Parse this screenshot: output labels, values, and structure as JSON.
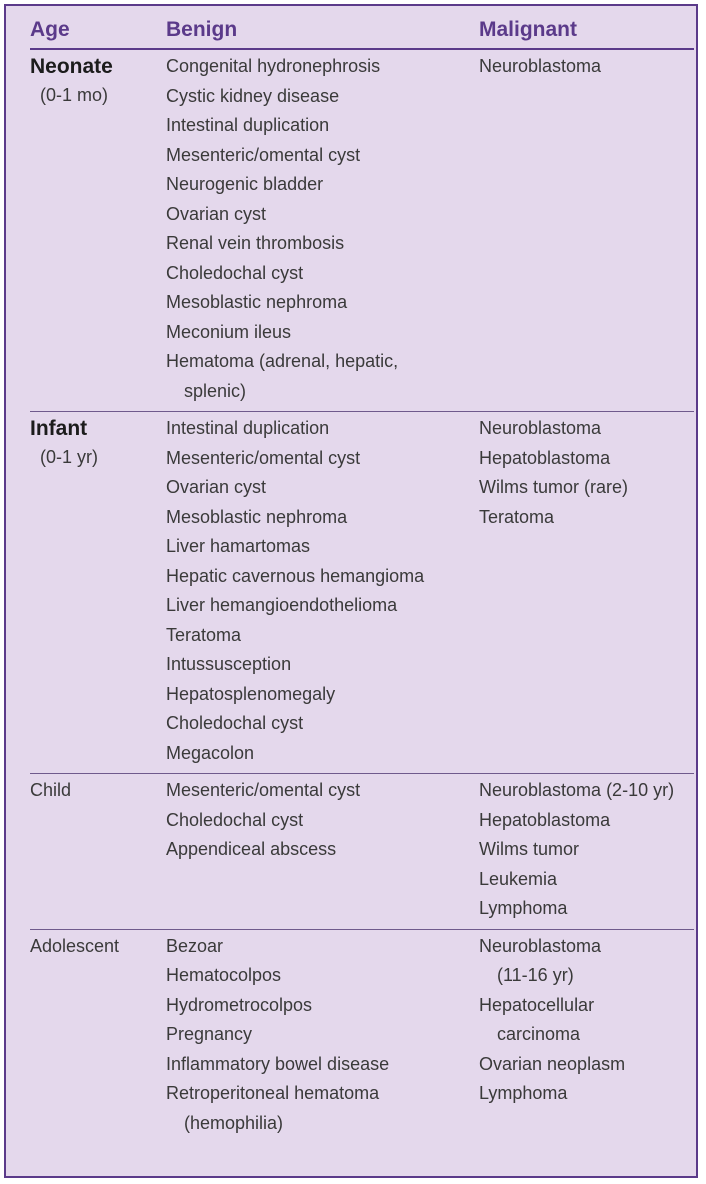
{
  "headers": {
    "age": "Age",
    "benign": "Benign",
    "malignant": "Malignant"
  },
  "rows": [
    {
      "age": "Neonate",
      "range": "(0-1 mo)",
      "benign": [
        "Congenital hydronephrosis",
        "Cystic kidney disease",
        "Intestinal duplication",
        "Mesenteric/omental cyst",
        "Neurogenic bladder",
        "Ovarian cyst",
        "Renal vein thrombosis",
        "Choledochal cyst",
        "Mesoblastic nephroma",
        "Meconium ileus",
        "Hematoma (adrenal, hepatic,",
        "splenic)"
      ],
      "malignant": [
        "Neuroblastoma"
      ]
    },
    {
      "age": "Infant",
      "range": "(0-1 yr)",
      "benign": [
        "Intestinal duplication",
        "Mesenteric/omental cyst",
        "Ovarian cyst",
        "Mesoblastic nephroma",
        "Liver hamartomas",
        "Hepatic cavernous hemangioma",
        "Liver hemangioendothelioma",
        "Teratoma",
        "Intussusception",
        "Hepatosplenomegaly",
        "Choledochal cyst",
        "Megacolon"
      ],
      "malignant": [
        "Neuroblastoma",
        "Hepatoblastoma",
        "Wilms tumor (rare)",
        "Teratoma"
      ]
    },
    {
      "age": "Child",
      "benign": [
        "Mesenteric/omental cyst",
        "Choledochal cyst",
        "Appendiceal abscess"
      ],
      "malignant": [
        "Neuroblastoma (2-10 yr)",
        "Hepatoblastoma",
        "Wilms tumor",
        "Leukemia",
        "Lymphoma"
      ]
    },
    {
      "age": "Adolescent",
      "benign": [
        "Bezoar",
        "Hematocolpos",
        "Hydrometrocolpos",
        "Pregnancy",
        "Inflammatory bowel disease",
        "Retroperitoneal hematoma",
        "(hemophilia)"
      ],
      "malignant": [
        "Neuroblastoma",
        "(11-16 yr)",
        "Hepatocellular",
        "carcinoma",
        "Ovarian neoplasm",
        "Lymphoma"
      ]
    }
  ]
}
